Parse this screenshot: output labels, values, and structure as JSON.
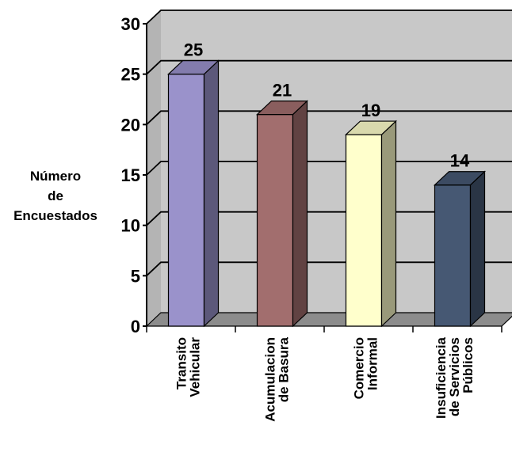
{
  "chart_data": {
    "type": "bar",
    "categories": [
      [
        "Transito",
        "Vehicular"
      ],
      [
        "Acumulacion",
        "de Basura"
      ],
      [
        "Comercio",
        "Informal"
      ],
      [
        "Insuficiencia",
        "de Servicios",
        "Públicos"
      ]
    ],
    "values": [
      25,
      21,
      19,
      14
    ],
    "data_labels": [
      "25",
      "21",
      "19",
      "14"
    ],
    "ylabel_lines": [
      "Número",
      "de",
      "Encuestados"
    ],
    "yticks": [
      0,
      5,
      10,
      15,
      20,
      25,
      30
    ],
    "ylim": [
      0,
      30
    ],
    "grid": true,
    "three_d": true,
    "colors": {
      "bars": [
        "#9A92CB",
        "#A26E6E",
        "#FFFFCC",
        "#465873"
      ],
      "wall": "#C8C8C8",
      "floor": "#8C8C8C",
      "grid": "#000000"
    }
  }
}
